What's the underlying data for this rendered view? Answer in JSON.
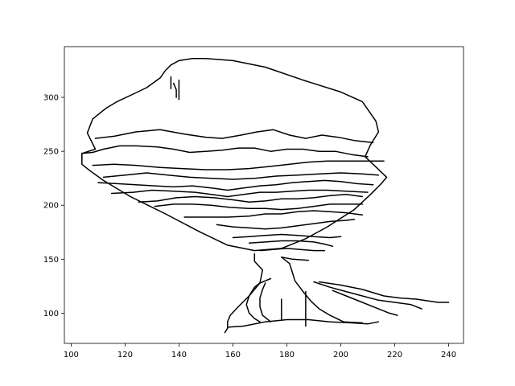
{
  "chart_data": {
    "type": "line",
    "title": "",
    "xlabel": "",
    "ylabel": "",
    "xlim": [
      97.5,
      245.5
    ],
    "ylim": [
      72,
      347
    ],
    "xticks": [
      100,
      120,
      140,
      160,
      180,
      200,
      220,
      240
    ],
    "yticks": [
      100,
      150,
      200,
      250,
      300
    ],
    "grid": false,
    "legend": "none",
    "line_color": "#000000",
    "series": [
      {
        "points": [
          [
            104,
            242
          ],
          [
            104,
            248
          ],
          [
            109,
            252
          ],
          [
            107,
            262
          ],
          [
            106,
            267
          ],
          [
            108,
            280
          ],
          [
            113,
            290
          ],
          [
            117,
            296
          ],
          [
            123,
            303
          ],
          [
            128,
            309
          ],
          [
            133,
            318
          ],
          [
            135,
            325
          ],
          [
            137,
            330
          ],
          [
            140,
            334
          ],
          [
            145,
            336
          ],
          [
            150,
            336
          ],
          [
            160,
            334
          ],
          [
            172,
            328
          ],
          [
            186,
            316
          ],
          [
            200,
            305
          ],
          [
            208,
            296
          ],
          [
            213,
            278
          ],
          [
            214,
            268
          ],
          [
            211,
            256
          ],
          [
            209,
            245
          ],
          [
            212,
            238
          ],
          [
            217,
            226
          ],
          [
            215,
            220
          ],
          [
            211,
            210
          ],
          [
            205,
            196
          ],
          [
            195,
            180
          ],
          [
            187,
            169
          ],
          [
            178,
            160
          ],
          [
            168,
            158
          ],
          [
            158,
            163
          ],
          [
            148,
            175
          ],
          [
            135,
            192
          ],
          [
            122,
            208
          ],
          [
            112,
            223
          ],
          [
            107,
            232
          ],
          [
            104,
            238
          ],
          [
            104,
            242
          ]
        ]
      },
      {
        "points": [
          [
            104,
            242
          ],
          [
            104,
            248
          ],
          [
            108,
            249
          ],
          [
            112,
            252
          ],
          [
            118,
            255
          ],
          [
            124,
            255
          ],
          [
            132,
            254
          ],
          [
            138,
            252
          ],
          [
            144,
            249
          ],
          [
            150,
            250
          ],
          [
            156,
            251
          ],
          [
            162,
            253
          ],
          [
            168,
            253
          ],
          [
            174,
            250
          ],
          [
            180,
            252
          ],
          [
            186,
            252
          ],
          [
            192,
            250
          ],
          [
            198,
            250
          ],
          [
            204,
            247
          ],
          [
            210,
            245
          ]
        ]
      },
      {
        "points": [
          [
            109,
            262
          ],
          [
            116,
            264
          ],
          [
            124,
            268
          ],
          [
            133,
            270
          ],
          [
            142,
            266
          ],
          [
            150,
            263
          ],
          [
            156,
            262
          ],
          [
            163,
            265
          ],
          [
            169,
            268
          ],
          [
            175,
            270
          ],
          [
            181,
            265
          ],
          [
            187,
            262
          ],
          [
            193,
            265
          ],
          [
            199,
            263
          ],
          [
            205,
            260
          ],
          [
            212,
            258
          ]
        ]
      },
      {
        "points": [
          [
            108,
            237
          ],
          [
            116,
            238
          ],
          [
            124,
            237
          ],
          [
            133,
            235
          ],
          [
            141,
            234
          ],
          [
            150,
            233
          ],
          [
            158,
            233
          ],
          [
            166,
            234
          ],
          [
            174,
            236
          ],
          [
            181,
            238
          ],
          [
            188,
            240
          ],
          [
            195,
            241
          ],
          [
            203,
            241
          ],
          [
            210,
            241
          ],
          [
            216,
            241
          ]
        ]
      },
      {
        "points": [
          [
            112,
            226
          ],
          [
            120,
            228
          ],
          [
            128,
            230
          ],
          [
            136,
            228
          ],
          [
            144,
            226
          ],
          [
            152,
            225
          ],
          [
            160,
            224
          ],
          [
            168,
            225
          ],
          [
            176,
            227
          ],
          [
            184,
            228
          ],
          [
            192,
            229
          ],
          [
            200,
            230
          ],
          [
            208,
            229
          ],
          [
            214,
            228
          ]
        ]
      },
      {
        "points": [
          [
            110,
            221
          ],
          [
            117,
            220
          ],
          [
            124,
            219
          ],
          [
            131,
            218
          ],
          [
            138,
            217
          ],
          [
            145,
            218
          ],
          [
            152,
            216
          ],
          [
            158,
            214
          ],
          [
            164,
            216
          ],
          [
            170,
            218
          ],
          [
            176,
            219
          ],
          [
            182,
            221
          ],
          [
            188,
            222
          ],
          [
            194,
            223
          ],
          [
            200,
            222
          ],
          [
            206,
            220
          ],
          [
            212,
            219
          ]
        ]
      },
      {
        "points": [
          [
            115,
            211
          ],
          [
            123,
            212
          ],
          [
            130,
            214
          ],
          [
            138,
            213
          ],
          [
            146,
            212
          ],
          [
            152,
            210
          ],
          [
            158,
            208
          ],
          [
            164,
            210
          ],
          [
            170,
            212
          ],
          [
            176,
            212
          ],
          [
            182,
            213
          ],
          [
            188,
            214
          ],
          [
            195,
            214
          ],
          [
            202,
            213
          ],
          [
            210,
            212
          ]
        ]
      },
      {
        "points": [
          [
            125,
            203
          ],
          [
            132,
            204
          ],
          [
            139,
            207
          ],
          [
            146,
            208
          ],
          [
            153,
            207
          ],
          [
            160,
            205
          ],
          [
            166,
            203
          ],
          [
            172,
            204
          ],
          [
            178,
            206
          ],
          [
            184,
            206
          ],
          [
            190,
            207
          ],
          [
            196,
            209
          ],
          [
            202,
            210
          ],
          [
            208,
            208
          ]
        ]
      },
      {
        "points": [
          [
            131,
            199
          ],
          [
            138,
            201
          ],
          [
            145,
            201
          ],
          [
            152,
            200
          ],
          [
            159,
            198
          ],
          [
            166,
            197
          ],
          [
            172,
            197
          ],
          [
            178,
            196
          ],
          [
            184,
            197
          ],
          [
            190,
            199
          ],
          [
            196,
            201
          ],
          [
            202,
            201
          ],
          [
            208,
            201
          ]
        ]
      },
      {
        "points": [
          [
            142,
            189
          ],
          [
            150,
            189
          ],
          [
            158,
            189
          ],
          [
            166,
            190
          ],
          [
            172,
            192
          ],
          [
            178,
            192
          ],
          [
            184,
            194
          ],
          [
            190,
            195
          ],
          [
            196,
            194
          ],
          [
            202,
            193
          ],
          [
            208,
            191
          ]
        ]
      },
      {
        "points": [
          [
            154,
            182
          ],
          [
            160,
            180
          ],
          [
            166,
            179
          ],
          [
            172,
            178
          ],
          [
            178,
            179
          ],
          [
            184,
            181
          ],
          [
            190,
            183
          ],
          [
            196,
            185
          ],
          [
            202,
            186
          ],
          [
            205,
            187
          ]
        ]
      },
      {
        "points": [
          [
            160,
            170
          ],
          [
            166,
            171
          ],
          [
            172,
            172
          ],
          [
            178,
            173
          ],
          [
            184,
            172
          ],
          [
            190,
            171
          ],
          [
            196,
            170
          ],
          [
            200,
            171
          ]
        ]
      },
      {
        "points": [
          [
            166,
            165
          ],
          [
            172,
            166
          ],
          [
            178,
            167
          ],
          [
            184,
            167
          ],
          [
            190,
            166
          ],
          [
            194,
            164
          ],
          [
            197,
            162
          ]
        ]
      },
      {
        "points": [
          [
            170,
            158
          ],
          [
            175,
            159
          ],
          [
            180,
            160
          ],
          [
            185,
            159
          ],
          [
            190,
            158
          ],
          [
            194,
            158
          ]
        ]
      },
      {
        "points": [
          [
            178,
            152
          ],
          [
            181,
            146
          ],
          [
            182,
            138
          ],
          [
            183,
            130
          ],
          [
            186,
            120
          ],
          [
            189,
            111
          ],
          [
            192,
            104
          ],
          [
            196,
            98
          ],
          [
            201,
            92
          ],
          [
            208,
            91
          ]
        ]
      },
      {
        "points": [
          [
            168,
            155
          ],
          [
            168,
            148
          ],
          [
            171,
            140
          ],
          [
            170,
            128
          ],
          [
            166,
            116
          ],
          [
            162,
            106
          ],
          [
            159,
            98
          ],
          [
            158,
            92
          ],
          [
            158,
            86
          ],
          [
            157,
            82
          ]
        ]
      },
      {
        "points": [
          [
            192,
            129
          ],
          [
            200,
            126
          ],
          [
            208,
            122
          ],
          [
            216,
            116
          ],
          [
            222,
            114
          ],
          [
            228,
            113
          ],
          [
            236,
            110
          ],
          [
            240,
            110
          ]
        ]
      },
      {
        "points": [
          [
            190,
            129
          ],
          [
            196,
            124
          ],
          [
            202,
            120
          ],
          [
            208,
            116
          ],
          [
            214,
            112
          ],
          [
            220,
            110
          ],
          [
            226,
            108
          ],
          [
            230,
            104
          ]
        ]
      },
      {
        "points": [
          [
            197,
            121
          ],
          [
            202,
            116
          ],
          [
            208,
            110
          ],
          [
            214,
            104
          ],
          [
            218,
            100
          ],
          [
            221,
            98
          ]
        ]
      },
      {
        "points": [
          [
            174,
            132
          ],
          [
            170,
            128
          ],
          [
            168,
            124
          ],
          [
            166,
            116
          ],
          [
            165,
            108
          ],
          [
            166,
            100
          ],
          [
            168,
            95
          ],
          [
            170,
            92
          ]
        ]
      },
      {
        "points": [
          [
            172,
            128
          ],
          [
            171,
            122
          ],
          [
            170,
            114
          ],
          [
            170,
            106
          ],
          [
            171,
            98
          ],
          [
            174,
            92
          ]
        ]
      },
      {
        "points": [
          [
            158,
            87
          ],
          [
            164,
            88
          ],
          [
            172,
            92
          ],
          [
            180,
            94
          ],
          [
            188,
            94
          ],
          [
            196,
            92
          ],
          [
            204,
            91
          ],
          [
            210,
            90
          ],
          [
            214,
            92
          ]
        ]
      },
      {
        "points": [
          [
            178,
            113
          ],
          [
            178,
            94
          ]
        ]
      },
      {
        "points": [
          [
            187,
            120
          ],
          [
            187,
            88
          ]
        ]
      },
      {
        "points": [
          [
            138,
            313
          ],
          [
            139,
            307
          ],
          [
            139,
            300
          ]
        ]
      },
      {
        "points": [
          [
            140,
            316
          ],
          [
            140,
            298
          ]
        ]
      },
      {
        "points": [
          [
            137,
            319
          ],
          [
            137,
            308
          ]
        ]
      },
      {
        "points": [
          [
            178,
            152
          ],
          [
            182,
            150
          ],
          [
            188,
            149
          ]
        ]
      }
    ]
  }
}
